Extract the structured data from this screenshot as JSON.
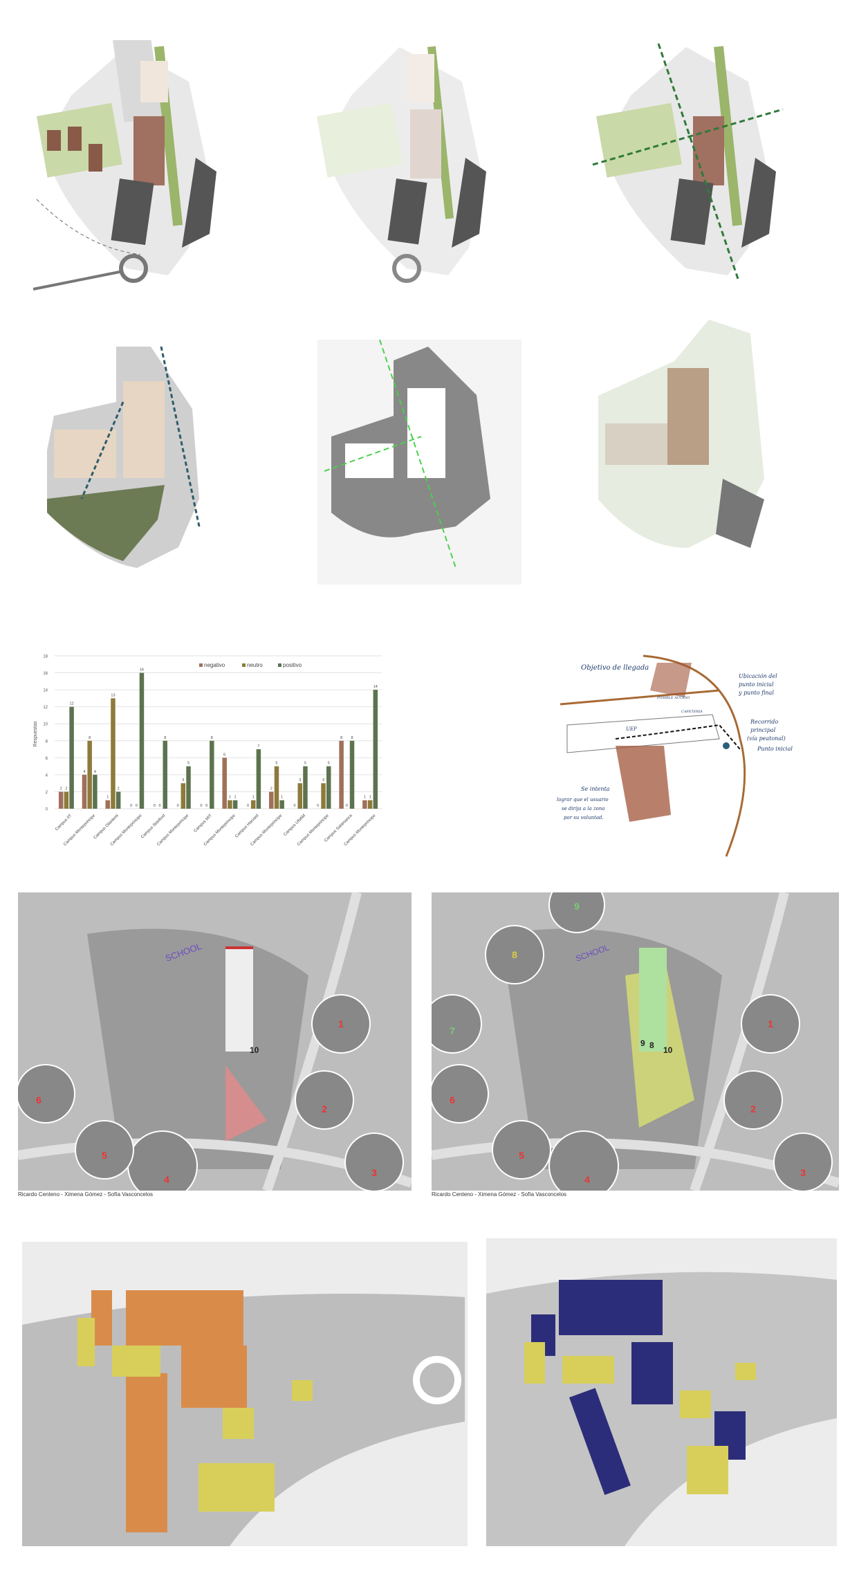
{
  "colors": {
    "negativo": "#a0705a",
    "neutro": "#8e7a3a",
    "positivo": "#5d7350",
    "site_green": "#9bb56b",
    "building_brown": "#a07060",
    "route_green": "#2f7a3a",
    "route_blue": "#2f5c6a",
    "model_orange": "#d98c4a",
    "model_yellow": "#d8cf5a",
    "model_blue": "#2c2d7a"
  },
  "chart_data": {
    "type": "bar",
    "ylabel": "Respuestas",
    "xlabel": "",
    "ylim": [
      0,
      18
    ],
    "yticks": [
      0,
      2,
      4,
      6,
      8,
      10,
      12,
      14,
      16,
      18
    ],
    "grid": true,
    "legend_position": "top-right",
    "categories": [
      "Campus IIT",
      "Campus Monteprincipe",
      "Campus Otaniemi",
      "Campus Monteprincipe",
      "Campus Stanford",
      "Campus Monteprincipe",
      "Campus MIT",
      "Campus Monteprincipe",
      "Campus Harvard",
      "Campus Monteprincipe",
      "Campus UNAM",
      "Campus Monteprincipe",
      "Campus Salamanca",
      "Campus Monteprincipe"
    ],
    "series": [
      {
        "name": "negativo",
        "values": [
          2,
          4,
          1,
          0,
          0,
          0,
          0,
          6,
          0,
          2,
          0,
          0,
          8,
          1
        ]
      },
      {
        "name": "neutro",
        "values": [
          2,
          8,
          13,
          0,
          0,
          3,
          0,
          1,
          1,
          5,
          3,
          3,
          0,
          1
        ]
      },
      {
        "name": "positivo",
        "values": [
          12,
          4,
          2,
          16,
          8,
          5,
          8,
          1,
          7,
          1,
          5,
          5,
          8,
          14
        ]
      }
    ]
  },
  "sketch": {
    "title": "Objetivo de llegada",
    "note_left": [
      "Se intenta",
      "lograr que el usuario",
      "se dirija a la zona",
      "por su voluntad."
    ],
    "note_right_top": [
      "Ubicación del",
      "punto inicial",
      "y punto final"
    ],
    "note_route": [
      "Recorrido",
      "principal",
      "(vía peatonal)"
    ],
    "note_start": "Punto inicial",
    "labels": [
      "UEP",
      "CAFETERÍA",
      "POSIBLE ACCESO"
    ]
  },
  "aerial_left": {
    "labels": [
      "SCHOOL",
      "10"
    ],
    "photo_numbers": [
      "1",
      "2",
      "3",
      "4",
      "5",
      "6"
    ],
    "credits": "Ricardo Centeno - Ximena Gómez - Sofía Vasconcelos"
  },
  "aerial_right": {
    "labels": [
      "SCHOOL",
      "10",
      "8",
      "9"
    ],
    "photo_numbers": [
      "1",
      "2",
      "3",
      "4",
      "5",
      "6",
      "7",
      "8",
      "9"
    ],
    "credits": "Ricardo Centeno - Ximena Gómez - Sofía Vasconcelos"
  }
}
